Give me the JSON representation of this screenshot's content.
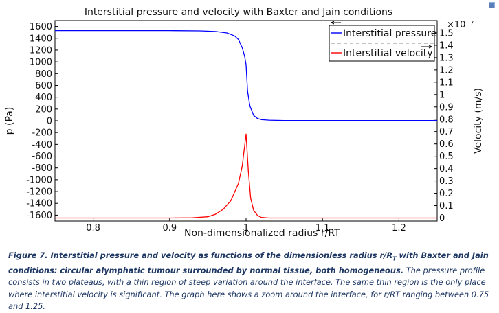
{
  "chart_data": {
    "type": "line",
    "title": "Interstitial pressure and velocity with Baxter and Jain conditions",
    "xlabel": "Non-dimensionalized radius r/RT",
    "ylabel": "p (Pa)",
    "y2label": "Velocity (m/s)",
    "y2_multiplier": "×10⁻⁷",
    "xlim": [
      0.75,
      1.25
    ],
    "ylim": [
      -1700,
      1700
    ],
    "y2lim": [
      -0.025,
      1.6
    ],
    "xticks": [
      "0.8",
      "0.9",
      "1",
      "1.1",
      "1.2"
    ],
    "yticks": [
      "1600",
      "1400",
      "1200",
      "1000",
      "800",
      "600",
      "400",
      "200",
      "0",
      "-200",
      "-400",
      "-600",
      "-800",
      "-1000",
      "-1200",
      "-1400",
      "-1600"
    ],
    "y2ticks": [
      "1.5",
      "1.4",
      "1.3",
      "1.2",
      "1.1",
      "1",
      "0.9",
      "0.8",
      "0.7",
      "0.6",
      "0.5",
      "0.4",
      "0.3",
      "0.2",
      "0.1",
      "0"
    ],
    "grid": false,
    "legend": "top-right",
    "series": [
      {
        "name": "Interstitial pressure",
        "axis": "left",
        "color": "#0000ff",
        "x": [
          0.75,
          0.9,
          0.94,
          0.96,
          0.975,
          0.985,
          0.99,
          0.995,
          0.998,
          1.0,
          1.002,
          1.005,
          1.01,
          1.015,
          1.02,
          1.03,
          1.05,
          1.25
        ],
        "y": [
          1530,
          1530,
          1525,
          1515,
          1490,
          1440,
          1380,
          1240,
          1100,
          950,
          500,
          250,
          90,
          40,
          20,
          10,
          5,
          5
        ]
      },
      {
        "name": "Interstitial velocity",
        "axis": "right",
        "color": "#ff0000",
        "x": [
          0.75,
          0.9,
          0.93,
          0.95,
          0.96,
          0.97,
          0.98,
          0.99,
          0.995,
          1.0,
          1.003,
          1.006,
          1.01,
          1.015,
          1.02,
          1.03,
          1.25
        ],
        "y": [
          0.0,
          0.0,
          0.002,
          0.01,
          0.03,
          0.07,
          0.14,
          0.28,
          0.42,
          0.68,
          0.38,
          0.16,
          0.06,
          0.02,
          0.005,
          0.0,
          0.0
        ]
      }
    ]
  },
  "caption": {
    "bold": "Figure 7. Interstitial pressure and velocity as functions of the dimensionless radius r/R",
    "bold_sub": "T",
    "bold_tail": " with Baxter and Jain conditions: circular alymphatic tumour surrounded by normal tissue, both homogeneous.",
    "rest": " The pressure profile consists in two plateaus, with a thin region of steep variation around the interface. The same thin region is the only place where interstitial velocity is significant. The graph here shows a zoom around the interface, for r/RT ranging between 0.75 and 1.25."
  }
}
